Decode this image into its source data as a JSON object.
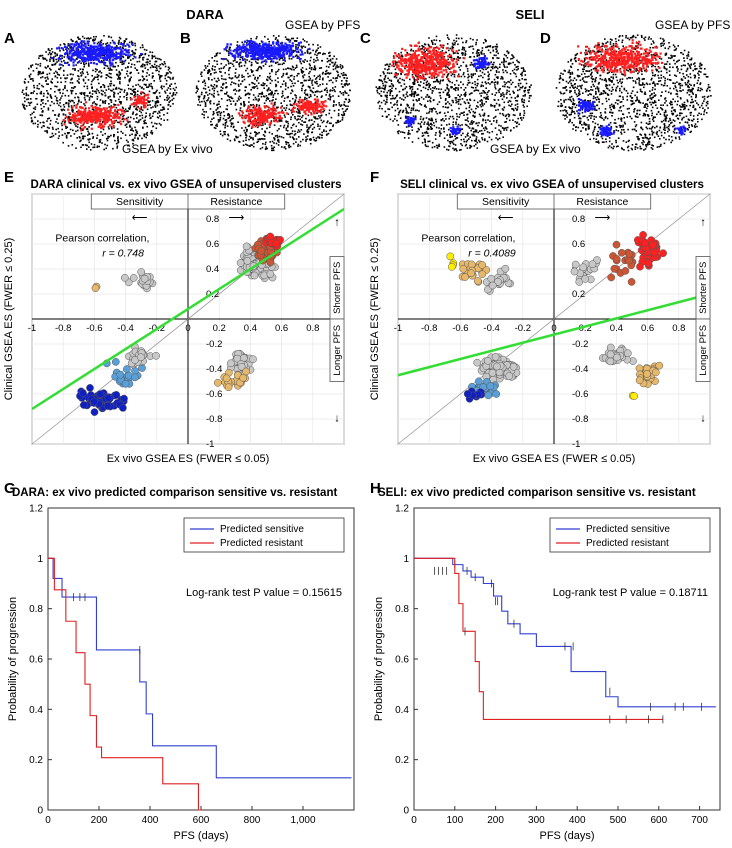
{
  "headers": {
    "left": "DARA",
    "right": "SELI"
  },
  "panel_letters": {
    "A": "A",
    "B": "B",
    "C": "C",
    "D": "D",
    "E": "E",
    "F": "F",
    "G": "G",
    "H": "H"
  },
  "tsne_captions": {
    "A": "GSEA by Ex vivo",
    "B": "GSEA by PFS",
    "C": "GSEA by Ex vivo",
    "D": "GSEA by PFS"
  },
  "colors": {
    "black": "#000000",
    "blue": "#1a1aff",
    "red": "#ff2020",
    "green": "#33dd33",
    "grey": "#c8c8c8",
    "darkblue": "#1020c0",
    "lightblue": "#5aa0d8",
    "orange": "#e8b86a",
    "darkred": "#cc5533",
    "yellow": "#ffee00",
    "km_blue": "#3040d0",
    "km_red": "#e02020"
  },
  "chart_data": [
    {
      "id": "E",
      "type": "scatter",
      "title": "DARA clinical vs. ex vivo GSEA of unsupervised clusters",
      "xlabel": "Ex vivo GSEA ES (FWER ≤ 0.05)",
      "ylabel": "Clinical GSEA ES (FWER ≤ 0.25)",
      "xlim": [
        -1,
        1
      ],
      "ylim": [
        -1,
        1
      ],
      "xticks": [
        "-1",
        "-0.8",
        "-0.6",
        "-0.4",
        "-0.2",
        "0",
        "0.2",
        "0.4",
        "0.6",
        "0.8"
      ],
      "yticks": [
        "0.8",
        "0.6",
        "0.4",
        "0.2",
        "-0.2",
        "-0.4",
        "-0.6",
        "-0.8",
        "-1"
      ],
      "annotation_title": "Pearson correlation,",
      "annotation_r": "r = 0.748",
      "sensitivity": "Sensitivity",
      "resistance": "Resistance",
      "shorter_pfs": "Shorter PFS",
      "longer_pfs": "Longer PFS",
      "fit_line": [
        [
          -1,
          -0.72
        ],
        [
          1,
          0.88
        ]
      ]
    },
    {
      "id": "F",
      "type": "scatter",
      "title": "SELI clinical vs. ex vivo GSEA of unsupervised clusters",
      "xlabel": "Ex vivo GSEA ES (FWER ≤ 0.05)",
      "ylabel": "Clinical GSEA ES (FWER ≤ 0.25)",
      "xlim": [
        -1,
        1
      ],
      "ylim": [
        -1,
        1
      ],
      "xticks": [
        "-1",
        "-0.8",
        "-0.6",
        "-0.4",
        "-0.2",
        "0",
        "0.2",
        "0.4",
        "0.6",
        "0.8"
      ],
      "yticks": [
        "0.8",
        "0.6",
        "0.4",
        "0.2",
        "-0.2",
        "-0.4",
        "-0.6",
        "-0.8",
        "-1"
      ],
      "annotation_title": "Pearson correlation,",
      "annotation_r": "r = 0.4089",
      "sensitivity": "Sensitivity",
      "resistance": "Resistance",
      "shorter_pfs": "Shorter PFS",
      "longer_pfs": "Longer PFS",
      "fit_line": [
        [
          -1,
          -0.45
        ],
        [
          1,
          0.2
        ]
      ]
    },
    {
      "id": "G",
      "type": "line",
      "title": "DARA: ex vivo predicted comparison sensitive vs. resistant",
      "xlabel": "PFS (days)",
      "ylabel": "Probability of progression",
      "xlim": [
        0,
        1200
      ],
      "ylim": [
        0,
        1.2
      ],
      "xticks": [
        0,
        200,
        400,
        600,
        800,
        1000
      ],
      "xtick_labels": [
        "0",
        "200",
        "400",
        "600",
        "800",
        "1,000"
      ],
      "yticks": [
        0,
        0.2,
        0.4,
        0.6,
        0.8,
        1,
        1.2
      ],
      "annotation": "Log-rank test P value = 0.15615",
      "series": [
        {
          "name": "Predicted sensitive",
          "color": "blue",
          "steps": [
            [
              0,
              1
            ],
            [
              20,
              0.92
            ],
            [
              55,
              0.846
            ],
            [
              190,
              0.636
            ],
            [
              360,
              0.509
            ],
            [
              385,
              0.382
            ],
            [
              410,
              0.255
            ],
            [
              660,
              0.128
            ],
            [
              1190,
              0.128
            ]
          ],
          "censors": [
            [
              100,
              0.846
            ],
            [
              125,
              0.846
            ],
            [
              145,
              0.846
            ],
            [
              360,
              0.636
            ]
          ]
        },
        {
          "name": "Predicted resistant",
          "color": "red",
          "steps": [
            [
              0,
              1
            ],
            [
              25,
              0.875
            ],
            [
              70,
              0.75
            ],
            [
              110,
              0.625
            ],
            [
              145,
              0.5
            ],
            [
              165,
              0.375
            ],
            [
              190,
              0.25
            ],
            [
              210,
              0.208
            ],
            [
              450,
              0.104
            ],
            [
              590,
              0
            ],
            [
              600,
              0
            ]
          ],
          "censors": []
        }
      ]
    },
    {
      "id": "H",
      "type": "line",
      "title": "SELI: ex vivo predicted comparison sensitive vs. resistant",
      "xlabel": "PFS (days)",
      "ylabel": "Probability of progression",
      "xlim": [
        0,
        750
      ],
      "ylim": [
        0,
        1.2
      ],
      "xticks": [
        0,
        100,
        200,
        300,
        400,
        500,
        600,
        700
      ],
      "xtick_labels": [
        "0",
        "100",
        "200",
        "300",
        "400",
        "500",
        "600",
        "700"
      ],
      "yticks": [
        0,
        0.2,
        0.4,
        0.6,
        0.8,
        1,
        1.2
      ],
      "annotation": "Log-rank test P value = 0.18711",
      "series": [
        {
          "name": "Predicted sensitive",
          "color": "blue",
          "steps": [
            [
              0,
              1
            ],
            [
              95,
              0.975
            ],
            [
              120,
              0.95
            ],
            [
              140,
              0.925
            ],
            [
              170,
              0.9
            ],
            [
              195,
              0.85
            ],
            [
              215,
              0.79
            ],
            [
              230,
              0.74
            ],
            [
              260,
              0.7
            ],
            [
              300,
              0.65
            ],
            [
              385,
              0.55
            ],
            [
              470,
              0.45
            ],
            [
              500,
              0.41
            ],
            [
              740,
              0.41
            ]
          ],
          "censors": [
            [
              50,
              0.95
            ],
            [
              60,
              0.95
            ],
            [
              70,
              0.95
            ],
            [
              80,
              0.95
            ],
            [
              100,
              0.975
            ],
            [
              130,
              0.95
            ],
            [
              150,
              0.925
            ],
            [
              190,
              0.9
            ],
            [
              200,
              0.83
            ],
            [
              205,
              0.83
            ],
            [
              245,
              0.74
            ],
            [
              370,
              0.65
            ],
            [
              390,
              0.65
            ],
            [
              480,
              0.47
            ],
            [
              580,
              0.41
            ],
            [
              640,
              0.41
            ],
            [
              660,
              0.41
            ],
            [
              705,
              0.41
            ]
          ]
        },
        {
          "name": "Predicted resistant",
          "color": "red",
          "steps": [
            [
              0,
              1
            ],
            [
              100,
              0.94
            ],
            [
              110,
              0.82
            ],
            [
              120,
              0.71
            ],
            [
              150,
              0.59
            ],
            [
              160,
              0.47
            ],
            [
              170,
              0.36
            ],
            [
              610,
              0.36
            ]
          ],
          "censors": [
            [
              125,
              0.71
            ],
            [
              480,
              0.36
            ],
            [
              520,
              0.36
            ],
            [
              575,
              0.36
            ],
            [
              610,
              0.36
            ]
          ]
        }
      ]
    }
  ]
}
